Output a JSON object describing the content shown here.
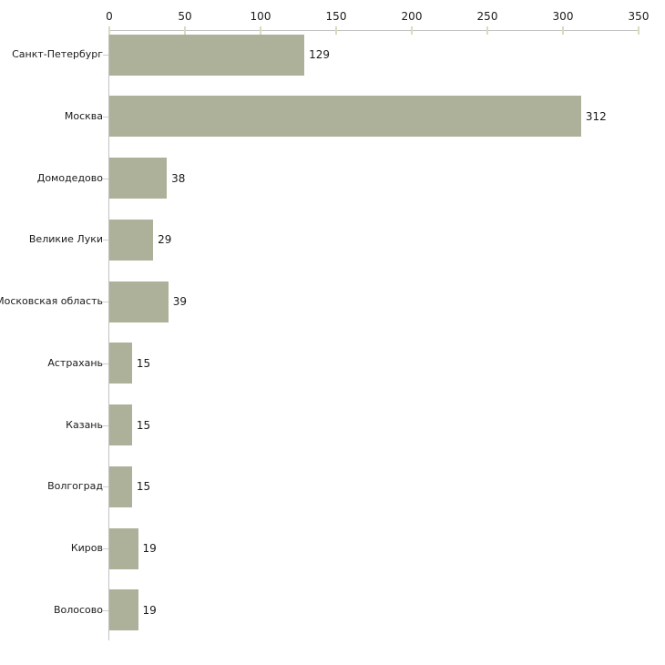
{
  "chart_data": {
    "type": "bar",
    "orientation": "horizontal",
    "title": "",
    "xlabel": "",
    "ylabel": "",
    "categories": [
      "Санкт-Петербург",
      "Москва",
      "Домодедово",
      "Великие Луки",
      "Московская область",
      "Астрахань",
      "Казань",
      "Волгоград",
      "Киров",
      "Волосово"
    ],
    "values": [
      129,
      312,
      38,
      29,
      39,
      15,
      15,
      15,
      19,
      19
    ],
    "value_labels": [
      "129",
      "312",
      "38",
      "29",
      "39",
      "15",
      "15",
      "15",
      "19",
      "19"
    ],
    "x_ticks": [
      0,
      50,
      100,
      150,
      200,
      250,
      300,
      350
    ],
    "xlim": [
      0,
      350
    ],
    "grid": false,
    "legend": "none",
    "axis_position": "top-left",
    "bar_color": "#adb199",
    "axis_line_color": "#c2c2c2",
    "tick_mark_color": "#d9dbbd",
    "category_tick_color": "#cdd0ba",
    "label_color": "#1a1a1a",
    "background_color": "#ffffff"
  }
}
